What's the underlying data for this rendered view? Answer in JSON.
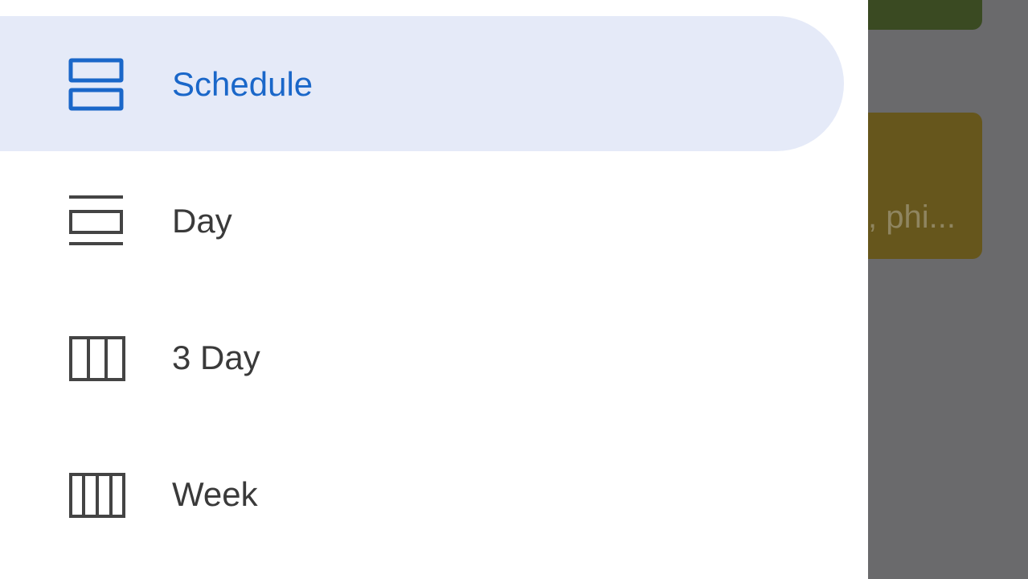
{
  "drawer": {
    "items": [
      {
        "label": "Schedule",
        "icon": "schedule-view-icon",
        "active": true
      },
      {
        "label": "Day",
        "icon": "day-view-icon",
        "active": false
      },
      {
        "label": "3 Day",
        "icon": "three-day-view-icon",
        "active": false
      },
      {
        "label": "Week",
        "icon": "week-view-icon",
        "active": false
      }
    ]
  },
  "background": {
    "event_snippet": ", phi..."
  },
  "colors": {
    "accent": "#1a67c9",
    "active_bg": "#e5eaf8",
    "text": "#3a3a3a",
    "scrim": "#6b6b6d"
  }
}
